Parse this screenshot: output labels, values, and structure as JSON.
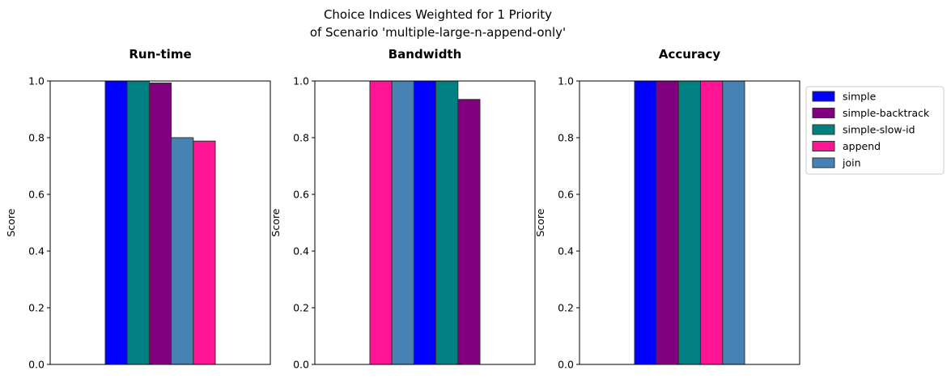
{
  "figure": {
    "title_line1": "Choice Indices Weighted for 1 Priority",
    "title_line2": "of Scenario 'multiple-large-n-append-only'"
  },
  "colors": {
    "simple": "#0000ff",
    "simple-backtrack": "#800080",
    "simple-slow-id": "#008080",
    "append": "#ff1493",
    "join": "#4682b4"
  },
  "chart_data": [
    {
      "type": "bar",
      "title": "Run-time",
      "ylabel": "Score",
      "ylim": [
        0,
        1
      ],
      "yticks": [
        "0.0",
        "0.2",
        "0.4",
        "0.6",
        "0.8",
        "1.0"
      ],
      "bars": [
        {
          "series": "simple",
          "value": 1.0
        },
        {
          "series": "simple-slow-id",
          "value": 1.0
        },
        {
          "series": "simple-backtrack",
          "value": 0.993
        },
        {
          "series": "join",
          "value": 0.8
        },
        {
          "series": "append",
          "value": 0.788
        }
      ]
    },
    {
      "type": "bar",
      "title": "Bandwidth",
      "ylabel": "Score",
      "ylim": [
        0,
        1
      ],
      "yticks": [
        "0.0",
        "0.2",
        "0.4",
        "0.6",
        "0.8",
        "1.0"
      ],
      "bars": [
        {
          "series": "append",
          "value": 1.0
        },
        {
          "series": "join",
          "value": 1.0
        },
        {
          "series": "simple",
          "value": 1.0
        },
        {
          "series": "simple-slow-id",
          "value": 1.0
        },
        {
          "series": "simple-backtrack",
          "value": 0.935
        }
      ]
    },
    {
      "type": "bar",
      "title": "Accuracy",
      "ylabel": "Score",
      "ylim": [
        0,
        1
      ],
      "yticks": [
        "0.0",
        "0.2",
        "0.4",
        "0.6",
        "0.8",
        "1.0"
      ],
      "bars": [
        {
          "series": "simple",
          "value": 1.0
        },
        {
          "series": "simple-backtrack",
          "value": 1.0
        },
        {
          "series": "simple-slow-id",
          "value": 1.0
        },
        {
          "series": "append",
          "value": 1.0
        },
        {
          "series": "join",
          "value": 1.0
        }
      ]
    }
  ],
  "legend": {
    "placement": "right",
    "entries": [
      "simple",
      "simple-backtrack",
      "simple-slow-id",
      "append",
      "join"
    ]
  }
}
